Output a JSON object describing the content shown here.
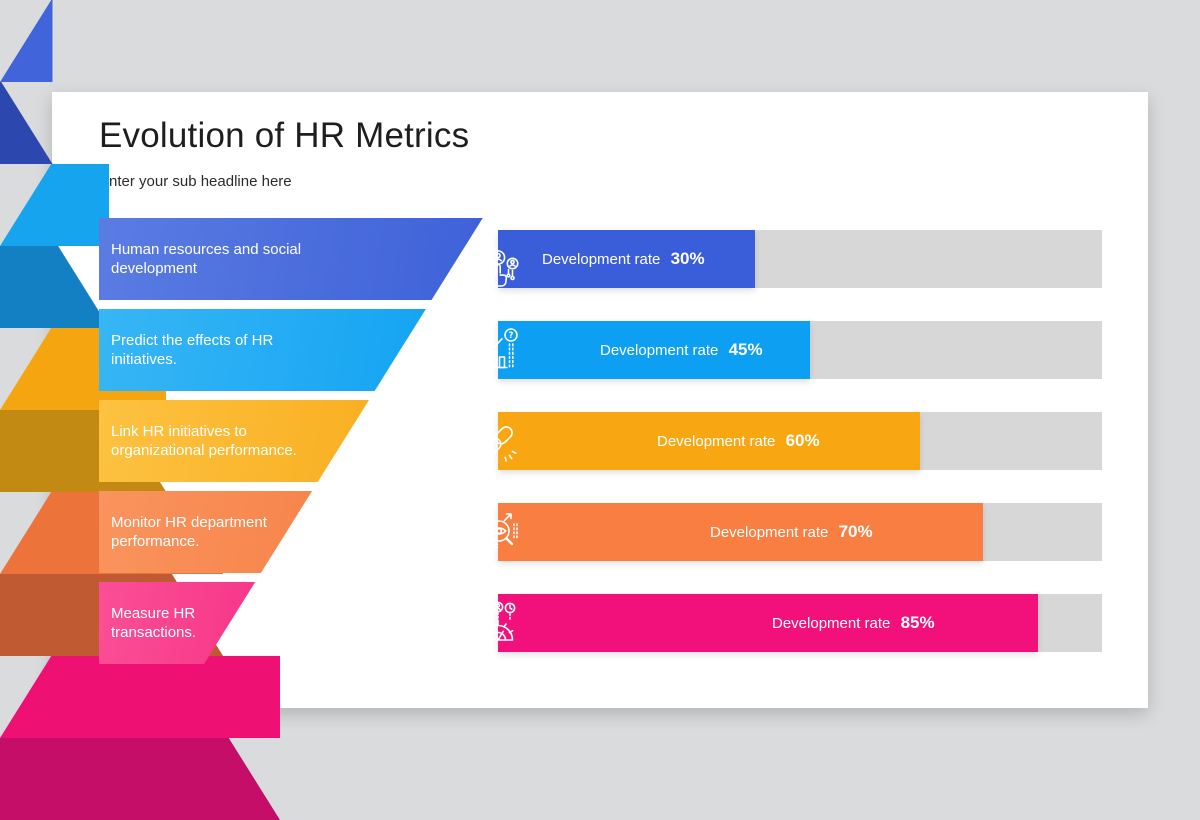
{
  "page": {
    "background_color": "#d9dbdd",
    "card_color": "#ffffff",
    "track_color": "#d7d7d7"
  },
  "header": {
    "title": "Evolution of HR Metrics",
    "subtitle": "Enter your sub headline here"
  },
  "rate_label": "Development rate",
  "rows": [
    {
      "label": "Human resources and social\ndevelopment",
      "rate_percent": "30%",
      "icon": "hr-people-icon",
      "gradient_from": "#5a7ce2",
      "gradient_to": "#3d60d8",
      "bar_color": "#3a5ed9",
      "pyramid_light": "#4164db",
      "pyramid_dark": "#2c47ae"
    },
    {
      "label": "Predict the effects of HR\ninitiatives.",
      "rate_percent": "45%",
      "icon": "prediction-chart-icon",
      "gradient_from": "#38b6f5",
      "gradient_to": "#0da0f2",
      "bar_color": "#0c9ff2",
      "pyramid_light": "#17a4ef",
      "pyramid_dark": "#1480c4"
    },
    {
      "label": "Link HR initiatives to\norganizational performance.",
      "rate_percent": "60%",
      "icon": "link-icon",
      "gradient_from": "#fdc242",
      "gradient_to": "#f7a713",
      "bar_color": "#f8a713",
      "pyramid_light": "#f5a50f",
      "pyramid_dark": "#c28a12"
    },
    {
      "label": "Monitor HR department\nperformance.",
      "rate_percent": "70%",
      "icon": "monitor-icon",
      "gradient_from": "#f9945e",
      "gradient_to": "#f5783b",
      "bar_color": "#f87e41",
      "pyramid_light": "#ec7339",
      "pyramid_dark": "#c05a33"
    },
    {
      "label": "Measure HR\ntransactions.",
      "rate_percent": "85%",
      "icon": "measure-transactions-icon",
      "gradient_from": "#fb4f96",
      "gradient_to": "#ef1276",
      "bar_color": "#f2107b",
      "pyramid_light": "#ee1173",
      "pyramid_dark": "#c40e68"
    }
  ],
  "chart_data": {
    "type": "bar",
    "title": "Evolution of HR Metrics",
    "categories": [
      "Human resources and social development",
      "Predict the effects of HR initiatives.",
      "Link HR initiatives to organizational performance.",
      "Monitor HR department performance.",
      "Measure HR transactions."
    ],
    "values": [
      30,
      45,
      60,
      70,
      85
    ],
    "value_label": "Development rate",
    "ylim": [
      0,
      100
    ]
  }
}
